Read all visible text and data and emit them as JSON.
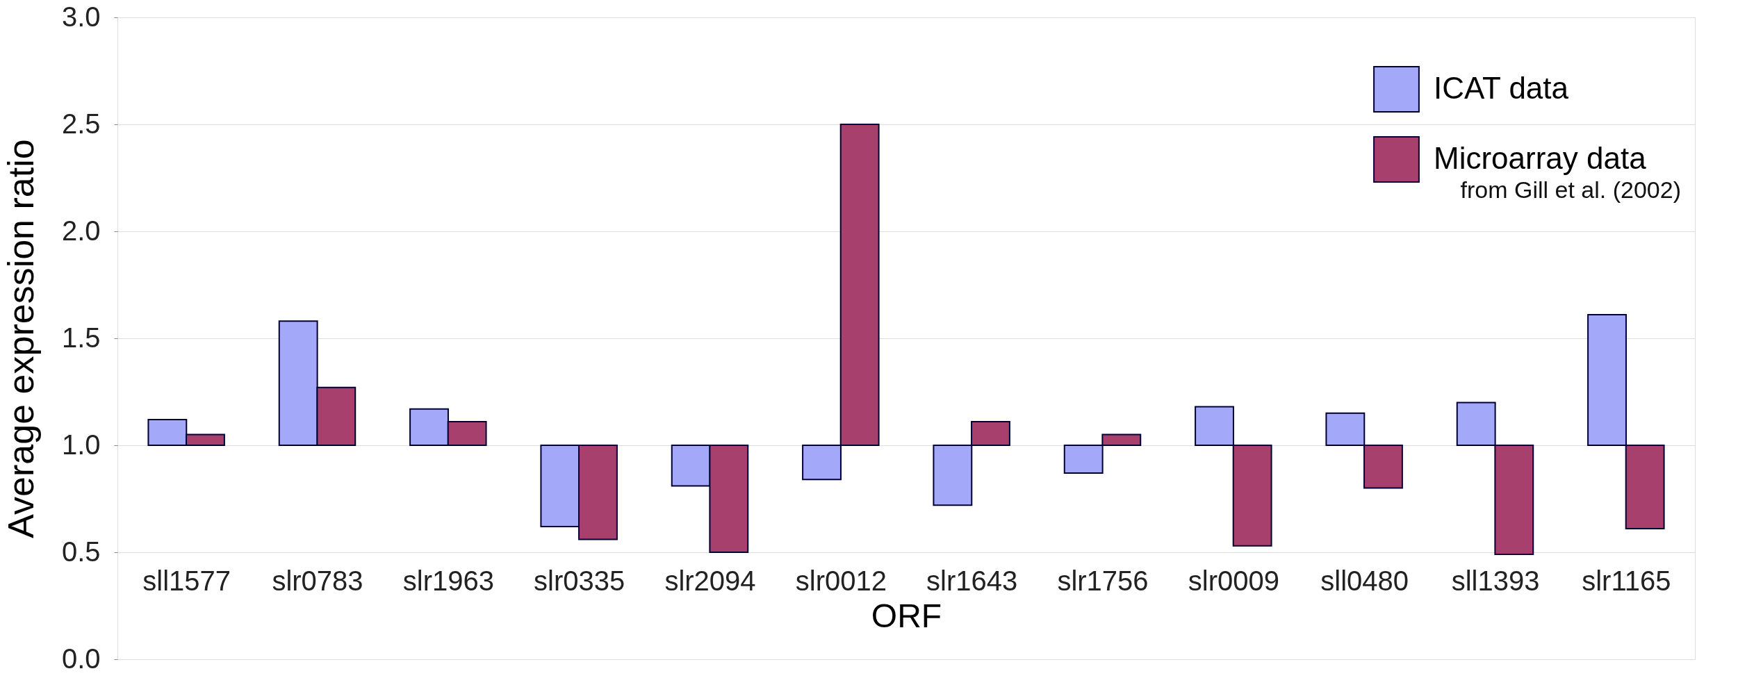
{
  "chart_data": {
    "type": "bar",
    "xlabel": "ORF",
    "ylabel": "Average expression ratio",
    "categories": [
      "sll1577",
      "slr0783",
      "slr1963",
      "slr0335",
      "slr2094",
      "slr0012",
      "slr1643",
      "slr1756",
      "slr0009",
      "sll0480",
      "sll1393",
      "slr1165"
    ],
    "series": [
      {
        "name": "ICAT data",
        "color": "#a4a8f8",
        "base": [
          1.0,
          1.0,
          1.0,
          1.0,
          1.0,
          1.0,
          1.0,
          1.0,
          1.0,
          1.0,
          1.0,
          1.0
        ],
        "values": [
          0.12,
          0.58,
          0.17,
          -0.38,
          -0.19,
          -0.16,
          -0.28,
          -0.13,
          0.18,
          0.15,
          0.2,
          0.61
        ]
      },
      {
        "name": "Microarray data",
        "color": "#a8406e",
        "base": [
          1.0,
          1.0,
          1.0,
          1.0,
          1.0,
          1.0,
          1.0,
          1.0,
          1.0,
          1.0,
          1.0,
          1.0
        ],
        "values": [
          0.05,
          0.27,
          0.11,
          -0.44,
          -0.5,
          1.5,
          0.11,
          0.05,
          -0.47,
          -0.2,
          -0.51,
          -0.39
        ]
      }
    ],
    "ylim": [
      0,
      3.0
    ],
    "yticks": [
      {
        "value": 0,
        "label": "0.0"
      },
      0.5,
      {
        "value": 1,
        "label": "1.0"
      },
      1.5,
      {
        "value": 2,
        "label": "2.0"
      },
      2.5,
      {
        "value": 3,
        "label": "3.0"
      }
    ],
    "grid": "y",
    "legend": "top right",
    "annotations": [
      "from Gill et al. (2002)"
    ]
  }
}
